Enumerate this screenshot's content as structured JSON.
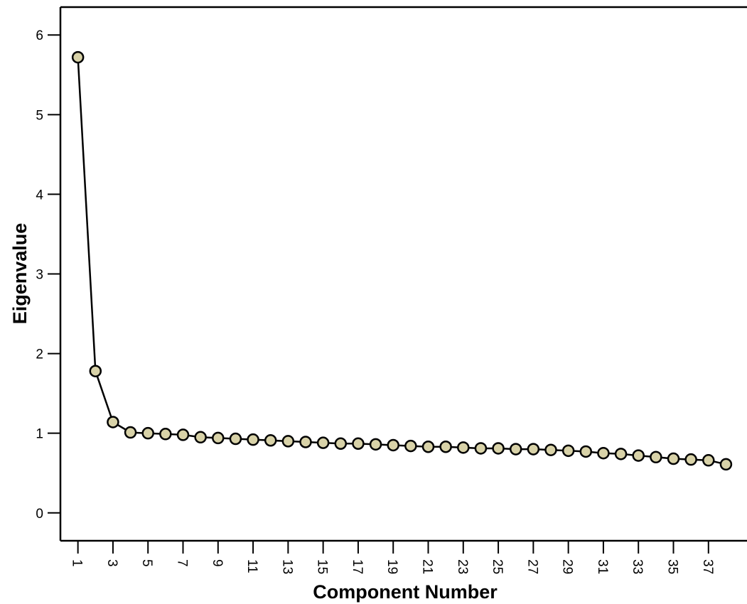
{
  "chart_data": {
    "type": "line",
    "title": "",
    "xlabel": "Component Number",
    "ylabel": "Eigenvalue",
    "x": [
      1,
      2,
      3,
      4,
      5,
      6,
      7,
      8,
      9,
      10,
      11,
      12,
      13,
      14,
      15,
      16,
      17,
      18,
      19,
      20,
      21,
      22,
      23,
      24,
      25,
      26,
      27,
      28,
      29,
      30,
      31,
      32,
      33,
      34,
      35,
      36,
      37,
      38
    ],
    "values": [
      5.72,
      1.78,
      1.14,
      1.01,
      1.0,
      0.99,
      0.98,
      0.95,
      0.94,
      0.93,
      0.92,
      0.91,
      0.9,
      0.89,
      0.88,
      0.87,
      0.87,
      0.86,
      0.85,
      0.84,
      0.83,
      0.83,
      0.82,
      0.81,
      0.81,
      0.8,
      0.8,
      0.79,
      0.78,
      0.77,
      0.75,
      0.74,
      0.72,
      0.7,
      0.68,
      0.67,
      0.66,
      0.61
    ],
    "x_tick_labels": [
      "1",
      "3",
      "5",
      "7",
      "9",
      "11",
      "13",
      "15",
      "17",
      "19",
      "21",
      "23",
      "25",
      "27",
      "29",
      "31",
      "33",
      "35",
      "37"
    ],
    "y_ticks": [
      0,
      1,
      2,
      3,
      4,
      5,
      6
    ],
    "ylim": [
      -0.35,
      6.35
    ],
    "xlim": [
      0.0,
      39.2
    ],
    "grid": false,
    "legend": "none",
    "marker_fill": "#d8d2a8",
    "line_color": "#000000"
  }
}
